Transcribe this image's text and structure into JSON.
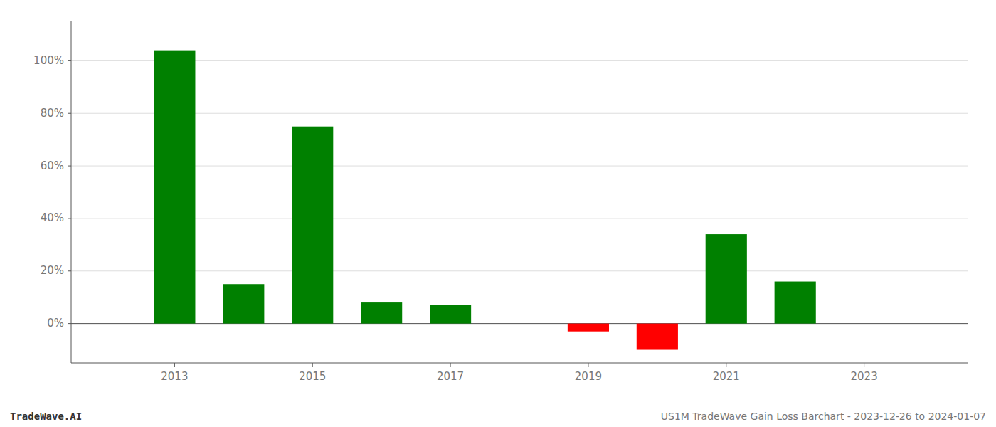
{
  "chart_data": {
    "type": "bar",
    "x": [
      2013,
      2014,
      2015,
      2016,
      2017,
      2018,
      2019,
      2020,
      2021,
      2022
    ],
    "values": [
      1.04,
      0.15,
      0.75,
      0.08,
      0.07,
      0.0,
      -0.03,
      -0.1,
      0.34,
      0.16
    ],
    "colors": [
      "#008000",
      "#008000",
      "#008000",
      "#008000",
      "#008000",
      "#008000",
      "#ff0000",
      "#ff0000",
      "#008000",
      "#008000"
    ],
    "xlim": [
      2011.5,
      2024.5
    ],
    "xticks": [
      2013,
      2015,
      2017,
      2019,
      2021,
      2023
    ],
    "ylim": [
      -0.15,
      1.15
    ],
    "yticks": [
      {
        "value": 0.0,
        "label": "0%"
      },
      {
        "value": 0.2,
        "label": "20%"
      },
      {
        "value": 0.4,
        "label": "40%"
      },
      {
        "value": 0.6,
        "label": "60%"
      },
      {
        "value": 0.8,
        "label": "80%"
      },
      {
        "value": 1.0,
        "label": "100%"
      }
    ],
    "grid": true,
    "annotations": [
      "TradeWave.AI",
      "US1M TradeWave Gain Loss Barchart - 2023-12-26 to 2024-01-07"
    ]
  }
}
